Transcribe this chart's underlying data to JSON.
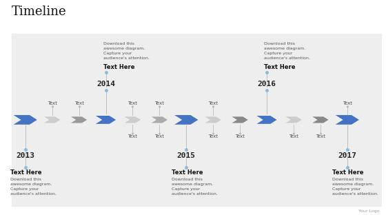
{
  "title": "Timeline",
  "background_color": "#eeeeee",
  "outer_bg": "#ffffff",
  "arrows": [
    {
      "x": 0,
      "color": "#4472C4",
      "size": "large"
    },
    {
      "x": 1,
      "color": "#cccccc",
      "size": "small"
    },
    {
      "x": 2,
      "color": "#999999",
      "size": "small"
    },
    {
      "x": 3,
      "color": "#4472C4",
      "size": "medium"
    },
    {
      "x": 4,
      "color": "#cccccc",
      "size": "small"
    },
    {
      "x": 5,
      "color": "#aaaaaa",
      "size": "small"
    },
    {
      "x": 6,
      "color": "#4472C4",
      "size": "large"
    },
    {
      "x": 7,
      "color": "#cccccc",
      "size": "small"
    },
    {
      "x": 8,
      "color": "#888888",
      "size": "small"
    },
    {
      "x": 9,
      "color": "#4472C4",
      "size": "medium"
    },
    {
      "x": 10,
      "color": "#cccccc",
      "size": "small"
    },
    {
      "x": 11,
      "color": "#888888",
      "size": "small"
    },
    {
      "x": 12,
      "color": "#4472C4",
      "size": "large"
    }
  ],
  "year_labels": [
    {
      "x": 0,
      "label": "2013",
      "side": "below"
    },
    {
      "x": 3,
      "label": "2014",
      "side": "above"
    },
    {
      "x": 6,
      "label": "2015",
      "side": "below"
    },
    {
      "x": 9,
      "label": "2016",
      "side": "above"
    },
    {
      "x": 12,
      "label": "2017",
      "side": "below"
    }
  ],
  "top_callouts": [
    {
      "x": 3,
      "text_here": "Text Here",
      "desc": "Download this\nawesome diagram.\nCapture your\naudience's attention."
    },
    {
      "x": 9,
      "text_here": "Text Here",
      "desc": "Download this\nawesome diagram.\nCapture your\naudience's attention."
    }
  ],
  "bottom_callouts": [
    {
      "x": 0,
      "text_here": "Text Here",
      "desc": "Download this\nawesome diagram.\nCapture your\naudience's attention."
    },
    {
      "x": 6,
      "text_here": "Text Here",
      "desc": "Download this\nawesome diagram.\nCapture your\naudience's attention."
    },
    {
      "x": 12,
      "text_here": "Text Here",
      "desc": "Download this\nawesome diagram.\nCapture your\naudience's attention."
    }
  ],
  "top_small_labels": [
    {
      "x": 1,
      "label": "Text"
    },
    {
      "x": 2,
      "label": "Text"
    },
    {
      "x": 4,
      "label": "Text"
    },
    {
      "x": 5,
      "label": "Text"
    },
    {
      "x": 7,
      "label": "Text"
    },
    {
      "x": 12,
      "label": "Text"
    }
  ],
  "bottom_small_labels": [
    {
      "x": 4,
      "label": "Text"
    },
    {
      "x": 5,
      "label": "Text"
    },
    {
      "x": 7,
      "label": "Text"
    },
    {
      "x": 8,
      "label": "Text"
    },
    {
      "x": 10,
      "label": "Text"
    },
    {
      "x": 11,
      "label": "Text"
    }
  ],
  "line_color": "#bbbbbb",
  "dot_color": "#88bbdd",
  "logo_text": "Your Logo",
  "title_fontsize": 13,
  "year_fontsize": 8,
  "small_label_fontsize": 5,
  "callout_title_fontsize": 6,
  "callout_desc_fontsize": 4.5
}
